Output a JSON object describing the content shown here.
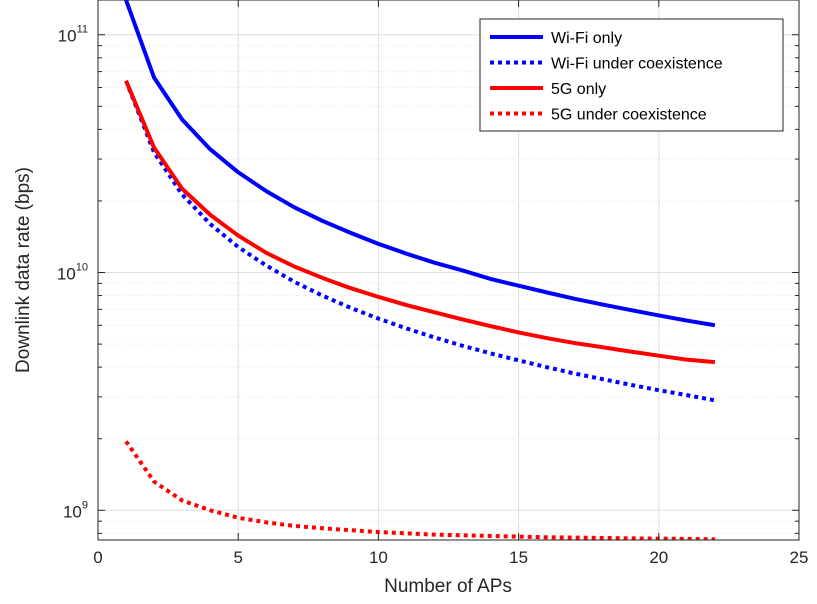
{
  "chart_data": {
    "type": "line",
    "title": "",
    "xlabel": "Number of APs",
    "ylabel": "Downlink data rate (bps)",
    "xlim": [
      0,
      25
    ],
    "ylim": [
      750000000,
      140000000000
    ],
    "yscale": "log",
    "grid": true,
    "legend_position": "top-right",
    "x_ticks": [
      {
        "value": 0,
        "label": "0"
      },
      {
        "value": 5,
        "label": "5"
      },
      {
        "value": 10,
        "label": "10"
      },
      {
        "value": 15,
        "label": "15"
      },
      {
        "value": 20,
        "label": "20"
      },
      {
        "value": 25,
        "label": "25"
      }
    ],
    "y_ticks": [
      {
        "value": 1000000000,
        "base": "10",
        "exp": "9"
      },
      {
        "value": 10000000000,
        "base": "10",
        "exp": "10"
      },
      {
        "value": 100000000000,
        "base": "10",
        "exp": "11"
      }
    ],
    "x": [
      1,
      2,
      3,
      4,
      5,
      6,
      7,
      8,
      9,
      10,
      11,
      12,
      13,
      14,
      15,
      16,
      17,
      18,
      19,
      20,
      21,
      22
    ],
    "series": [
      {
        "name": "Wi-Fi only",
        "color": "#0000ff",
        "dash": "solid",
        "values": [
          140000000000.0,
          66000000000.0,
          44000000000.0,
          33000000000.0,
          26400000000.0,
          22000000000.0,
          18800000000.0,
          16500000000.0,
          14700000000.0,
          13200000000.0,
          12000000000.0,
          11000000000.0,
          10200000000.0,
          9400000000.0,
          8800000000.0,
          8250000000.0,
          7750000000.0,
          7330000000.0,
          6950000000.0,
          6600000000.0,
          6280000000.0,
          6000000000.0
        ]
      },
      {
        "name": "Wi-Fi under coexistence",
        "color": "#0000ff",
        "dash": "dotted",
        "values": [
          64000000000.0,
          32000000000.0,
          21300000000.0,
          16000000000.0,
          12800000000.0,
          10700000000.0,
          9140000000.0,
          8000000000.0,
          7110000000.0,
          6400000000.0,
          5820000000.0,
          5330000000.0,
          4920000000.0,
          4570000000.0,
          4270000000.0,
          4000000000.0,
          3760000000.0,
          3560000000.0,
          3370000000.0,
          3200000000.0,
          3050000000.0,
          2900000000.0
        ]
      },
      {
        "name": "5G only",
        "color": "#ff0000",
        "dash": "solid",
        "values": [
          64000000000.0,
          33500000000.0,
          22500000000.0,
          17500000000.0,
          14300000000.0,
          12100000000.0,
          10600000000.0,
          9500000000.0,
          8600000000.0,
          7900000000.0,
          7300000000.0,
          6800000000.0,
          6350000000.0,
          5950000000.0,
          5600000000.0,
          5300000000.0,
          5050000000.0,
          4850000000.0,
          4650000000.0,
          4470000000.0,
          4300000000.0,
          4200000000.0
        ]
      },
      {
        "name": "5G under coexistence",
        "color": "#ff0000",
        "dash": "dotted",
        "values": [
          1950000000.0,
          1320000000.0,
          1100000000.0,
          1000000000.0,
          930000000.0,
          890000000.0,
          860000000.0,
          840000000.0,
          825000000.0,
          810000000.0,
          800000000.0,
          790000000.0,
          785000000.0,
          780000000.0,
          775000000.0,
          770000000.0,
          768000000.0,
          765000000.0,
          762000000.0,
          760000000.0,
          758000000.0,
          755000000.0
        ]
      }
    ]
  }
}
